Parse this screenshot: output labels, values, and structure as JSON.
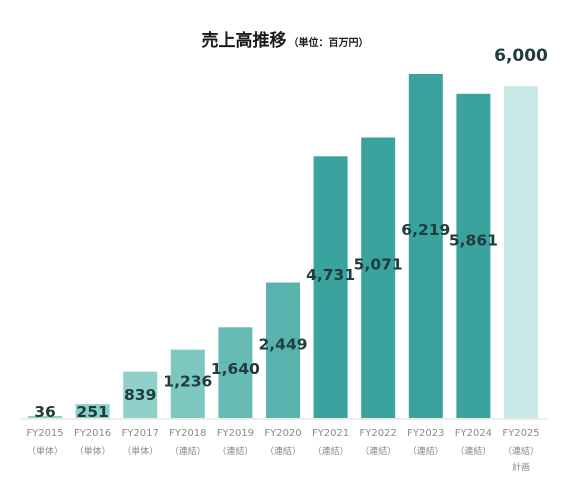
{
  "chart_data": {
    "type": "bar",
    "title": "売上高推移",
    "subtitle": "（単位：百万円）",
    "categories": [
      "FY2015",
      "FY2016",
      "FY2017",
      "FY2018",
      "FY2019",
      "FY2020",
      "FY2021",
      "FY2022",
      "FY2023",
      "FY2024",
      "FY2025"
    ],
    "category_notes": [
      [
        "（単体）"
      ],
      [
        "（単体）"
      ],
      [
        "（単体）"
      ],
      [
        "（連結）"
      ],
      [
        "（連結）"
      ],
      [
        "（連結）"
      ],
      [
        "（連結）"
      ],
      [
        "（連結）"
      ],
      [
        "（連結）"
      ],
      [
        "（連結）"
      ],
      [
        "（連結）",
        "計画"
      ]
    ],
    "values": [
      36,
      251,
      839,
      1236,
      1640,
      2449,
      4731,
      5071,
      6219,
      5861,
      6000
    ],
    "value_labels": [
      "36",
      "251",
      "839",
      "1,236",
      "1,640",
      "2,449",
      "4,731",
      "5,071",
      "6,219",
      "5,861",
      "6,000"
    ],
    "bar_colors": [
      "#8fd0ca",
      "#8fd0ca",
      "#8fd0ca",
      "#7ec7c1",
      "#66bab4",
      "#58b3ad",
      "#3aa39d",
      "#3aa39d",
      "#3aa39d",
      "#3aa39d",
      "#c8e9e6"
    ],
    "ylim": [
      0,
      6219
    ],
    "xlabel": "",
    "ylabel": "",
    "grid": false,
    "legend": "none"
  }
}
